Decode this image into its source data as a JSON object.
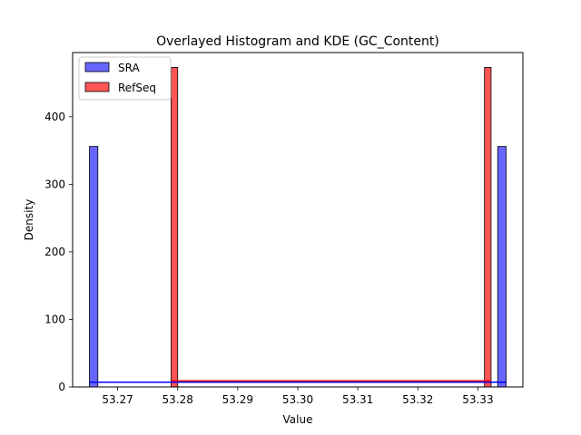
{
  "chart_data": {
    "type": "bar",
    "title": "Overlayed Histogram and KDE (GC_Content)",
    "xlabel": "Value",
    "ylabel": "Density",
    "xlim": [
      53.2625,
      53.3375
    ],
    "ylim": [
      0,
      495
    ],
    "xticks": [
      53.27,
      53.28,
      53.29,
      53.3,
      53.31,
      53.32,
      53.33
    ],
    "xtick_labels": [
      "53.27",
      "53.28",
      "53.29",
      "53.30",
      "53.31",
      "53.32",
      "53.33"
    ],
    "yticks": [
      0,
      100,
      200,
      300,
      400
    ],
    "ytick_labels": [
      "0",
      "100",
      "200",
      "300",
      "400"
    ],
    "legend_position": "top-left",
    "grid": false,
    "series": [
      {
        "name": "SRA",
        "color": "#6666ff",
        "edge_color": "#000000",
        "line_color": "#0000ff",
        "bins": [
          {
            "x0": 53.2653,
            "x1": 53.2667,
            "value": 356
          },
          {
            "x0": 53.3333,
            "x1": 53.3347,
            "value": 356
          }
        ],
        "kde": {
          "x": [
            53.2653,
            53.3347
          ],
          "y": [
            7,
            7
          ]
        }
      },
      {
        "name": "RefSeq",
        "color": "#ff5555",
        "edge_color": "#000000",
        "line_color": "#ff0000",
        "bins": [
          {
            "x0": 53.2789,
            "x1": 53.28,
            "value": 473
          },
          {
            "x0": 53.3311,
            "x1": 53.3322,
            "value": 473
          }
        ],
        "kde": {
          "x": [
            53.2789,
            53.3322
          ],
          "y": [
            9,
            9
          ]
        }
      }
    ]
  }
}
